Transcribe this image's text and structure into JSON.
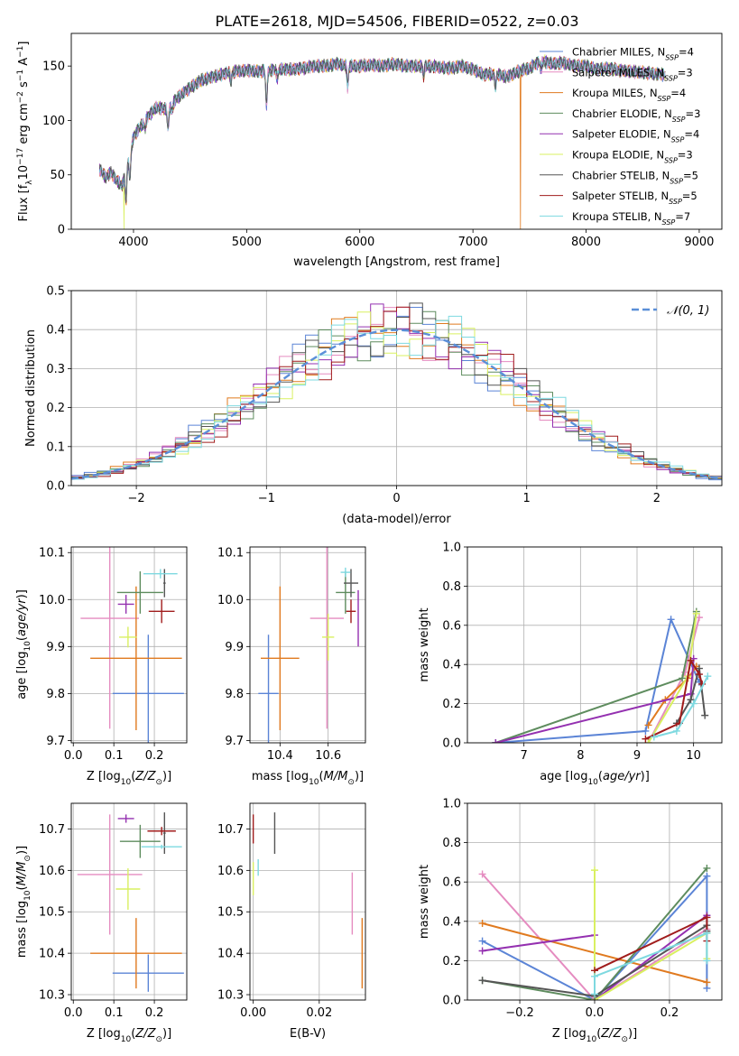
{
  "title": "PLATE=2618, MJD=54506, FIBERID=0522, z=0.03",
  "colors": {
    "Chabrier MILES": "#5b84d6",
    "Salpeter MILES": "#e58cc0",
    "Kroupa MILES": "#e07a1f",
    "Chabrier ELODIE": "#5e8c5e",
    "Salpeter ELODIE": "#9430b0",
    "Kroupa ELODIE": "#d9f060",
    "Chabrier STELIB": "#555555",
    "Salpeter STELIB": "#a01c1c",
    "Kroupa STELIB": "#7ed9e0",
    "gauss": "#5b8fd8"
  },
  "chart_data": [
    {
      "id": "spectrum",
      "type": "line",
      "xlabel": "wavelength [Angstrom, rest frame]",
      "ylabel": "Flux [f_λ 10^-17 erg cm^-2 s^-1 A^-1]",
      "xlim": [
        3450,
        9200
      ],
      "ylim": [
        0,
        180
      ],
      "xticks": [
        4000,
        5000,
        6000,
        7000,
        8000,
        9000
      ],
      "yticks": [
        0,
        50,
        100,
        150
      ],
      "legend_position": "right",
      "legend": [
        {
          "model": "Chabrier MILES",
          "n_ssp": 4
        },
        {
          "model": "Salpeter MILES",
          "n_ssp": 3
        },
        {
          "model": "Kroupa MILES",
          "n_ssp": 4
        },
        {
          "model": "Chabrier ELODIE",
          "n_ssp": 3
        },
        {
          "model": "Salpeter ELODIE",
          "n_ssp": 4
        },
        {
          "model": "Kroupa ELODIE",
          "n_ssp": 3
        },
        {
          "model": "Chabrier STELIB",
          "n_ssp": 5
        },
        {
          "model": "Salpeter STELIB",
          "n_ssp": 5
        },
        {
          "model": "Kroupa STELIB",
          "n_ssp": 7
        }
      ],
      "continuum": [
        [
          3700,
          55
        ],
        [
          3750,
          48
        ],
        [
          3800,
          52
        ],
        [
          3850,
          45
        ],
        [
          3900,
          40
        ],
        [
          3950,
          60
        ],
        [
          4000,
          85
        ],
        [
          4100,
          100
        ],
        [
          4200,
          112
        ],
        [
          4300,
          110
        ],
        [
          4400,
          122
        ],
        [
          4500,
          130
        ],
        [
          4600,
          137
        ],
        [
          4700,
          140
        ],
        [
          4800,
          143
        ],
        [
          4900,
          145
        ],
        [
          5000,
          146
        ],
        [
          5100,
          145
        ],
        [
          5200,
          146
        ],
        [
          5300,
          147
        ],
        [
          5400,
          147
        ],
        [
          5500,
          148
        ],
        [
          5600,
          150
        ],
        [
          5700,
          150
        ],
        [
          5800,
          152
        ],
        [
          5900,
          150
        ],
        [
          6000,
          150
        ],
        [
          6100,
          151
        ],
        [
          6200,
          150
        ],
        [
          6300,
          152
        ],
        [
          6400,
          150
        ],
        [
          6500,
          150
        ],
        [
          6600,
          150
        ],
        [
          6700,
          149
        ],
        [
          6800,
          148
        ],
        [
          6900,
          150
        ],
        [
          7000,
          147
        ],
        [
          7100,
          142
        ],
        [
          7200,
          143
        ],
        [
          7300,
          140
        ],
        [
          7400,
          145
        ],
        [
          7500,
          148
        ],
        [
          7600,
          155
        ],
        [
          7700,
          152
        ],
        [
          7800,
          153
        ],
        [
          7900,
          150
        ],
        [
          8000,
          150
        ],
        [
          8100,
          147
        ],
        [
          8200,
          148
        ],
        [
          8300,
          146
        ],
        [
          8400,
          145
        ],
        [
          8500,
          144
        ],
        [
          8600,
          143
        ],
        [
          8700,
          142
        ]
      ],
      "features": [
        {
          "x": 3934,
          "depth": 28
        },
        {
          "x": 3969,
          "depth": 22
        },
        {
          "x": 4101,
          "depth": 8
        },
        {
          "x": 4305,
          "depth": 18
        },
        {
          "x": 4340,
          "depth": 7
        },
        {
          "x": 4861,
          "depth": 8
        },
        {
          "x": 5175,
          "depth": 32
        },
        {
          "x": 5270,
          "depth": 8
        },
        {
          "x": 5893,
          "depth": 20
        },
        {
          "x": 6563,
          "depth": 10
        },
        {
          "x": 7200,
          "depth": 12
        },
        {
          "x": 7600,
          "depth": 8
        }
      ],
      "drops_to_zero": [
        {
          "x": 3915,
          "series": "Kroupa ELODIE"
        },
        {
          "x": 6790,
          "series": "Kroupa MILES"
        },
        {
          "x": 7420,
          "series": "Kroupa MILES"
        }
      ]
    },
    {
      "id": "residuals",
      "type": "line",
      "xlabel": "(data-model)/error",
      "ylabel": "Normed distribution",
      "xlim": [
        -2.5,
        2.5
      ],
      "ylim": [
        0,
        0.5
      ],
      "xticks": [
        -2,
        -1,
        0,
        1,
        2
      ],
      "yticks": [
        0.0,
        0.1,
        0.2,
        0.3,
        0.4,
        0.5
      ],
      "grid": true,
      "legend_position": "top-right",
      "curve_label": "𝒩(0, 1)",
      "histogram_bin_width": 0.1
    },
    {
      "id": "age_vs_Z",
      "type": "scatter",
      "xlabel": "Z [log10(Z/Z☉)]",
      "ylabel": "age [log10(age/yr)]",
      "xlim": [
        -0.005,
        0.28
      ],
      "ylim": [
        9.695,
        10.112
      ],
      "xticks": [
        0.0,
        0.1,
        0.2
      ],
      "yticks": [
        9.7,
        9.8,
        9.9,
        10.0,
        10.1
      ],
      "grid": true,
      "points": [
        {
          "series": "Chabrier MILES",
          "x": 0.185,
          "y": 9.8,
          "xerr": 0.088,
          "yerr": 0.125
        },
        {
          "series": "Salpeter MILES",
          "x": 0.09,
          "y": 9.96,
          "xerr": 0.072,
          "yerr": 0.235
        },
        {
          "series": "Kroupa MILES",
          "x": 0.155,
          "y": 9.875,
          "xerr": 0.113,
          "yerr": 0.153
        },
        {
          "series": "Chabrier ELODIE",
          "x": 0.165,
          "y": 10.015,
          "xerr": 0.057,
          "yerr": 0.045
        },
        {
          "series": "Salpeter ELODIE",
          "x": 0.13,
          "y": 9.99,
          "xerr": 0.02,
          "yerr": 0.02
        },
        {
          "series": "Kroupa ELODIE",
          "x": 0.135,
          "y": 9.92,
          "xerr": 0.022,
          "yerr": 0.022
        },
        {
          "series": "Chabrier STELIB",
          "x": 0.225,
          "y": 10.035,
          "xerr": 0.003,
          "yerr": 0.03
        },
        {
          "series": "Salpeter STELIB",
          "x": 0.218,
          "y": 9.975,
          "xerr": 0.032,
          "yerr": 0.025
        },
        {
          "series": "Kroupa STELIB",
          "x": 0.215,
          "y": 10.055,
          "xerr": 0.042,
          "yerr": 0.01
        }
      ]
    },
    {
      "id": "age_vs_mass",
      "type": "scatter",
      "xlabel": "mass [log10(M/M☉)]",
      "ylabel": "",
      "xlim": [
        10.275,
        10.755
      ],
      "ylim": [
        9.695,
        10.112
      ],
      "xticks": [
        10.4,
        10.6
      ],
      "yticks": [
        9.7,
        9.8,
        9.9,
        10.0,
        10.1
      ],
      "grid": true,
      "points": [
        {
          "series": "Chabrier MILES",
          "x": 10.352,
          "y": 9.8,
          "xerr": 0.042,
          "yerr": 0.125
        },
        {
          "series": "Salpeter MILES",
          "x": 10.595,
          "y": 9.96,
          "xerr": 0.07,
          "yerr": 0.235
        },
        {
          "series": "Kroupa MILES",
          "x": 10.4,
          "y": 9.875,
          "xerr": 0.08,
          "yerr": 0.153
        },
        {
          "series": "Chabrier ELODIE",
          "x": 10.672,
          "y": 10.015,
          "xerr": 0.04,
          "yerr": 0.045
        },
        {
          "series": "Salpeter ELODIE",
          "x": 10.725,
          "y": 9.96,
          "xerr": 0.001,
          "yerr": 0.06
        },
        {
          "series": "Kroupa ELODIE",
          "x": 10.6,
          "y": 9.92,
          "xerr": 0.025,
          "yerr": 0.05
        },
        {
          "series": "Chabrier STELIB",
          "x": 10.695,
          "y": 10.035,
          "xerr": 0.03,
          "yerr": 0.03
        },
        {
          "series": "Salpeter STELIB",
          "x": 10.695,
          "y": 9.975,
          "xerr": 0.02,
          "yerr": 0.025
        },
        {
          "series": "Kroupa STELIB",
          "x": 10.672,
          "y": 10.058,
          "xerr": 0.02,
          "yerr": 0.01
        }
      ]
    },
    {
      "id": "massweight_vs_age",
      "type": "line",
      "xlabel": "age [log10(age/yr)]",
      "ylabel": "mass weight",
      "xlim": [
        6.0,
        10.5
      ],
      "ylim": [
        0,
        1
      ],
      "xticks": [
        7,
        8,
        9,
        10
      ],
      "yticks": [
        0.0,
        0.2,
        0.4,
        0.6,
        0.8,
        1.0
      ],
      "grid": true,
      "series": [
        {
          "name": "Chabrier MILES",
          "x": [
            6.5,
            9.15,
            9.6,
            10.1
          ],
          "y": [
            0.0,
            0.06,
            0.63,
            0.31
          ]
        },
        {
          "name": "Salpeter MILES",
          "x": [
            9.2,
            9.85,
            10.1
          ],
          "y": [
            0.0,
            0.36,
            0.64
          ]
        },
        {
          "name": "Kroupa MILES",
          "x": [
            9.2,
            9.5,
            9.9,
            10.05
          ],
          "y": [
            0.09,
            0.22,
            0.33,
            0.39
          ]
        },
        {
          "name": "Chabrier ELODIE",
          "x": [
            6.5,
            9.8,
            10.05
          ],
          "y": [
            0.0,
            0.33,
            0.67
          ]
        },
        {
          "name": "Salpeter ELODIE",
          "x": [
            6.5,
            9.95,
            10.0
          ],
          "y": [
            0.0,
            0.25,
            0.43
          ]
        },
        {
          "name": "Kroupa ELODIE",
          "x": [
            9.2,
            9.9,
            10.05
          ],
          "y": [
            0.0,
            0.34,
            0.66
          ]
        },
        {
          "name": "Chabrier STELIB",
          "x": [
            9.7,
            9.95,
            10.1,
            10.2
          ],
          "y": [
            0.1,
            0.22,
            0.38,
            0.14
          ]
        },
        {
          "name": "Salpeter STELIB",
          "x": [
            9.15,
            9.75,
            9.95,
            10.1,
            10.15
          ],
          "y": [
            0.02,
            0.1,
            0.42,
            0.35,
            0.3
          ]
        },
        {
          "name": "Kroupa STELIB",
          "x": [
            9.3,
            9.7,
            10.0,
            10.25
          ],
          "y": [
            0.03,
            0.06,
            0.2,
            0.34
          ]
        }
      ]
    },
    {
      "id": "mass_vs_Z",
      "type": "scatter",
      "xlabel": "Z [log10(Z/Z☉)]",
      "ylabel": "mass [log10(M/M☉)]",
      "xlim": [
        -0.005,
        0.28
      ],
      "ylim": [
        10.287,
        10.762
      ],
      "xticks": [
        0.0,
        0.1,
        0.2
      ],
      "yticks": [
        10.3,
        10.4,
        10.5,
        10.6,
        10.7
      ],
      "grid": true,
      "points": [
        {
          "series": "Chabrier MILES",
          "x": 0.185,
          "y": 10.352,
          "xerr": 0.088,
          "yerr": 0.045
        },
        {
          "series": "Salpeter MILES",
          "x": 0.09,
          "y": 10.59,
          "xerr": 0.08,
          "yerr": 0.145
        },
        {
          "series": "Kroupa MILES",
          "x": 0.155,
          "y": 10.4,
          "xerr": 0.113,
          "yerr": 0.085
        },
        {
          "series": "Chabrier ELODIE",
          "x": 0.165,
          "y": 10.67,
          "xerr": 0.05,
          "yerr": 0.04
        },
        {
          "series": "Salpeter ELODIE",
          "x": 0.13,
          "y": 10.725,
          "xerr": 0.02,
          "yerr": 0.01
        },
        {
          "series": "Kroupa ELODIE",
          "x": 0.135,
          "y": 10.555,
          "xerr": 0.03,
          "yerr": 0.05
        },
        {
          "series": "Chabrier STELIB",
          "x": 0.225,
          "y": 10.69,
          "xerr": 0.003,
          "yerr": 0.05
        },
        {
          "series": "Salpeter STELIB",
          "x": 0.218,
          "y": 10.695,
          "xerr": 0.035,
          "yerr": 0.01
        },
        {
          "series": "Kroupa STELIB",
          "x": 0.218,
          "y": 10.657,
          "xerr": 0.05,
          "yerr": 0.005
        }
      ]
    },
    {
      "id": "mass_vs_EBV",
      "type": "scatter",
      "xlabel": "E(B-V)",
      "ylabel": "",
      "xlim": [
        -0.001,
        0.034
      ],
      "ylim": [
        10.287,
        10.762
      ],
      "xticks": [
        0.0,
        0.02
      ],
      "yticks": [
        10.3,
        10.4,
        10.5,
        10.6,
        10.7
      ],
      "grid": true,
      "points": [
        {
          "series": "Kroupa MILES",
          "x": 0.033,
          "y": 10.4,
          "yerr": 0.085
        },
        {
          "series": "Salpeter MILES",
          "x": 0.03,
          "y": 10.52,
          "yerr": 0.075
        },
        {
          "series": "Salpeter STELIB",
          "x": 0.0,
          "y": 10.7,
          "yerr": 0.035
        },
        {
          "series": "Kroupa ELODIE",
          "x": 0.0,
          "y": 10.58,
          "yerr": 0.04
        },
        {
          "series": "Kroupa STELIB",
          "x": 0.0015,
          "y": 10.607,
          "yerr": 0.02
        },
        {
          "series": "Chabrier STELIB",
          "x": 0.0065,
          "y": 10.69,
          "yerr": 0.05
        }
      ]
    },
    {
      "id": "massweight_vs_Z",
      "type": "line",
      "xlabel": "Z [log10(Z/Z☉)]",
      "ylabel": "mass weight",
      "xlim": [
        -0.34,
        0.34
      ],
      "ylim": [
        0,
        1
      ],
      "xticks": [
        -0.2,
        0.0,
        0.2
      ],
      "yticks": [
        0.0,
        0.2,
        0.4,
        0.6,
        0.8,
        1.0
      ],
      "grid": true,
      "series": [
        {
          "name": "Chabrier MILES",
          "x": [
            -0.3,
            0.0,
            0.3,
            0.3
          ],
          "y": [
            0.3,
            0.0,
            0.63,
            0.06
          ]
        },
        {
          "name": "Salpeter MILES",
          "x": [
            -0.3,
            0.0,
            0.3
          ],
          "y": [
            0.64,
            0.0,
            0.36
          ]
        },
        {
          "name": "Kroupa MILES",
          "x": [
            -0.3,
            0.3
          ],
          "y": [
            0.39,
            0.09
          ]
        },
        {
          "name": "Chabrier ELODIE",
          "x": [
            -0.3,
            0.0,
            0.3
          ],
          "y": [
            0.1,
            0.0,
            0.67
          ]
        },
        {
          "name": "Salpeter ELODIE",
          "x": [
            -0.3,
            0.0,
            0.0,
            0.3
          ],
          "y": [
            0.25,
            0.33,
            0.0,
            0.43
          ]
        },
        {
          "name": "Kroupa ELODIE",
          "x": [
            0.0,
            0.0,
            0.3,
            0.3
          ],
          "y": [
            0.66,
            0.0,
            0.34,
            0.21
          ]
        },
        {
          "name": "Chabrier STELIB",
          "x": [
            -0.3,
            0.0,
            0.3,
            0.3
          ],
          "y": [
            0.1,
            0.02,
            0.38,
            0.35
          ]
        },
        {
          "name": "Salpeter STELIB",
          "x": [
            0.0,
            0.3,
            0.3
          ],
          "y": [
            0.15,
            0.42,
            0.3
          ]
        },
        {
          "name": "Kroupa STELIB",
          "x": [
            0.0,
            0.0,
            0.3,
            0.3
          ],
          "y": [
            0.03,
            0.12,
            0.34,
            0.2
          ]
        }
      ]
    }
  ]
}
